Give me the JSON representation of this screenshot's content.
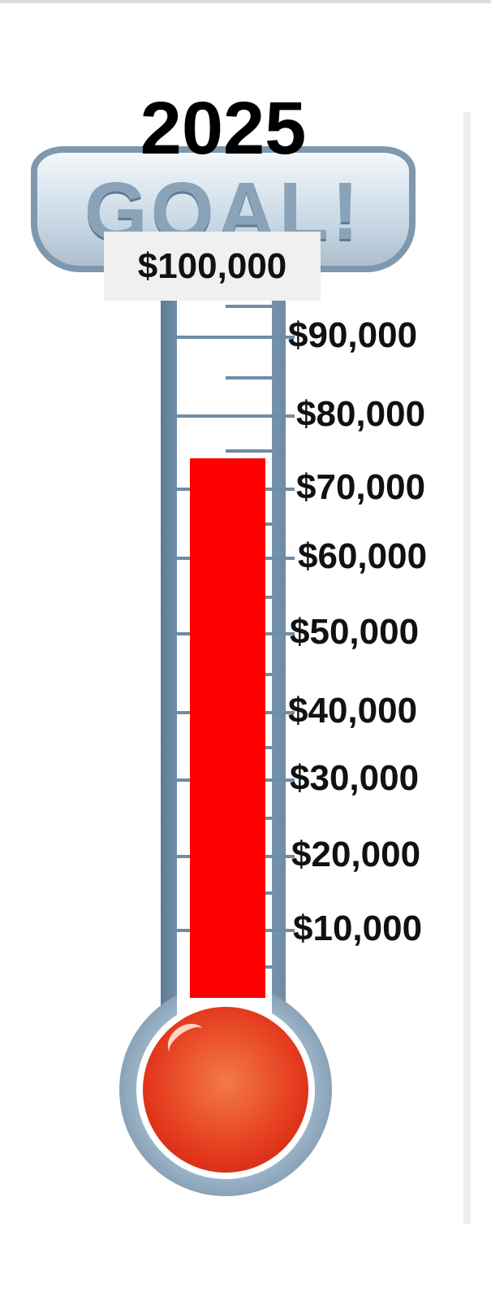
{
  "year": "2025",
  "goal_banner": "GOAL!",
  "goal_amount": "$100,000",
  "goal_value": 100000,
  "raised_value": 74000,
  "fill_color": "#ff0000",
  "scale_labels": [
    "$90,000",
    "$80,000",
    "$70,000",
    "$60,000",
    "$50,000",
    "$40,000",
    "$30,000",
    "$20,000",
    "$10,000"
  ]
}
